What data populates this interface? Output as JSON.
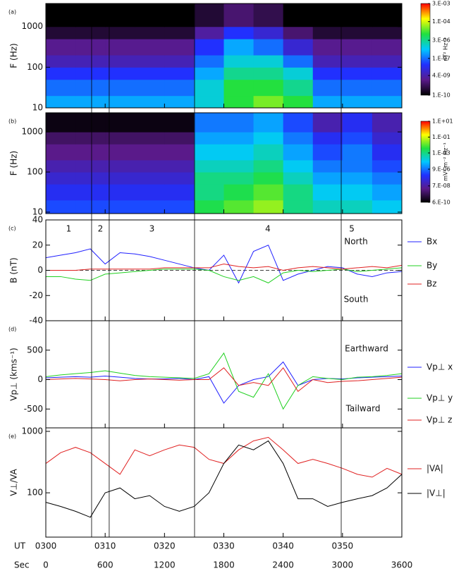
{
  "chart_data": [
    {
      "type": "heatmap",
      "panel_label": "(a)",
      "ylabel": "F (Hz)",
      "log_y": true,
      "ylim": [
        10,
        3700
      ],
      "yticks": [
        10,
        100,
        1000
      ],
      "time_bins": [
        0,
        300,
        600,
        900,
        1200,
        1500,
        1800,
        2100,
        2400,
        2700,
        3000,
        3300,
        3600
      ],
      "freq_bins": [
        10,
        20,
        50,
        100,
        200,
        500,
        1000,
        3700
      ],
      "colormap": [
        "#000000",
        "#5a1a8a",
        "#2030ff",
        "#00c8ff",
        "#20e040",
        "#ffff00",
        "#ff0000"
      ],
      "zlim": [
        1e-10,
        0.003
      ],
      "zlabel": "nT² Hz⁻¹",
      "zticks": [
        {
          "value": 0.003,
          "label": "3.E-03"
        },
        {
          "value": 0.0001,
          "label": "1.E-04"
        },
        {
          "value": 3e-06,
          "label": "3.E-06"
        },
        {
          "value": 1e-07,
          "label": "1.E-07"
        },
        {
          "value": 4e-09,
          "label": "4.E-09"
        },
        {
          "value": 1e-10,
          "label": "1.E-10"
        }
      ],
      "z": [
        [
          3e-07,
          3e-07,
          3e-07,
          3e-07,
          3e-07,
          1e-06,
          1e-05,
          3e-05,
          1e-05,
          3e-07,
          3e-07,
          3e-07
        ],
        [
          1e-07,
          1e-07,
          1e-07,
          1e-07,
          1e-07,
          1e-06,
          1e-05,
          1e-05,
          3e-06,
          1e-07,
          1e-07,
          1e-07
        ],
        [
          3e-08,
          3e-08,
          3e-08,
          3e-08,
          3e-08,
          3e-07,
          3e-06,
          3e-06,
          1e-06,
          3e-08,
          3e-08,
          3e-08
        ],
        [
          5e-09,
          5e-09,
          5e-09,
          5e-09,
          5e-09,
          1e-07,
          1e-06,
          1e-06,
          1e-07,
          5e-09,
          5e-09,
          5e-09
        ],
        [
          2e-09,
          2e-09,
          2e-09,
          2e-09,
          2e-09,
          3e-08,
          3e-07,
          1e-07,
          1e-08,
          2e-09,
          2e-09,
          2e-09
        ],
        [
          3e-10,
          3e-10,
          3e-10,
          3e-10,
          3e-10,
          3e-09,
          3e-08,
          1e-08,
          1e-09,
          3e-10,
          3e-10,
          3e-10
        ],
        [
          1e-10,
          1e-10,
          1e-10,
          1e-10,
          1e-10,
          3e-10,
          1e-09,
          5e-10,
          1e-10,
          1e-10,
          1e-10,
          1e-10
        ]
      ]
    },
    {
      "type": "heatmap",
      "panel_label": "(b)",
      "ylabel": "F (Hz)",
      "log_y": true,
      "ylim": [
        9.2,
        3000
      ],
      "yticks": [
        10,
        100,
        1000
      ],
      "time_bins": [
        0,
        300,
        600,
        900,
        1200,
        1500,
        1800,
        2100,
        2400,
        2700,
        3000,
        3300,
        3600
      ],
      "freq_bins": [
        9.2,
        20,
        50,
        100,
        200,
        500,
        1000,
        3000
      ],
      "colormap": [
        "#000000",
        "#5a1a8a",
        "#2030ff",
        "#00c8ff",
        "#20e040",
        "#ffff00",
        "#ff0000"
      ],
      "zlim": [
        6e-10,
        10
      ],
      "zlabel": "mV² m⁻² Hz⁻¹",
      "zticks": [
        {
          "value": 10,
          "label": "1.E+01"
        },
        {
          "value": 0.1,
          "label": "1.E-01"
        },
        {
          "value": 0.001,
          "label": "1.E-03"
        },
        {
          "value": 9e-06,
          "label": "9.E-06"
        },
        {
          "value": 7e-08,
          "label": "7.E-08"
        },
        {
          "value": 6e-10,
          "label": "6.E-10"
        }
      ],
      "z": [
        [
          3e-06,
          3e-06,
          3e-06,
          3e-06,
          3e-06,
          0.003,
          0.01,
          0.03,
          0.001,
          0.0003,
          0.0003,
          0.0001
        ],
        [
          1e-06,
          1e-06,
          1e-06,
          1e-06,
          1e-06,
          0.001,
          0.003,
          0.01,
          0.001,
          0.0001,
          0.0001,
          3e-05
        ],
        [
          3e-07,
          3e-07,
          3e-07,
          3e-07,
          3e-07,
          0.001,
          0.001,
          0.003,
          0.0003,
          3e-05,
          3e-05,
          1e-05
        ],
        [
          1e-07,
          1e-07,
          1e-07,
          1e-07,
          1e-07,
          0.0003,
          0.0003,
          0.001,
          0.0001,
          1e-05,
          1e-05,
          3e-06
        ],
        [
          3e-08,
          3e-08,
          3e-08,
          3e-08,
          3e-08,
          0.0001,
          0.0001,
          0.0003,
          3e-05,
          3e-06,
          1e-05,
          1e-06
        ],
        [
          1e-08,
          1e-08,
          1e-08,
          1e-08,
          1e-08,
          3e-05,
          3e-05,
          0.0001,
          1e-05,
          1e-06,
          3e-06,
          3e-07
        ],
        [
          1e-09,
          1e-09,
          1e-09,
          1e-09,
          1e-09,
          1e-05,
          1e-05,
          3e-05,
          3e-06,
          1e-07,
          1e-06,
          1e-07
        ]
      ]
    },
    {
      "type": "line",
      "panel_label": "(c)",
      "ylabel": "B (nT)",
      "ylim": [
        -40,
        40
      ],
      "yticks": [
        -40,
        -20,
        0,
        20,
        40
      ],
      "zero_line": true,
      "boundaries": [
        463,
        641,
        1504,
        2987
      ],
      "region_labels": [
        "1",
        "2",
        "3",
        "4",
        "5"
      ],
      "annotations": [
        "North",
        "South"
      ],
      "annotation_color": "#2020ff",
      "x": [
        0,
        150,
        300,
        450,
        600,
        750,
        900,
        1050,
        1200,
        1350,
        1500,
        1650,
        1800,
        1950,
        2100,
        2250,
        2400,
        2550,
        2700,
        2850,
        3000,
        3150,
        3300,
        3450,
        3600
      ],
      "series": [
        {
          "name": "Bx",
          "color": "#2020ff",
          "values": [
            10,
            12,
            14,
            17,
            5,
            14,
            13,
            11,
            8,
            5,
            2,
            0,
            12,
            -10,
            15,
            20,
            -8,
            -3,
            0,
            3,
            2,
            -3,
            -5,
            -2,
            -1
          ]
        },
        {
          "name": "By",
          "color": "#20d020",
          "values": [
            -5,
            -5,
            -7,
            -8,
            -3,
            -2,
            -1,
            0,
            1,
            1,
            1,
            0,
            -5,
            -8,
            -5,
            -10,
            -2,
            0,
            -1,
            0,
            1,
            -1,
            0,
            1,
            2
          ]
        },
        {
          "name": "Bz",
          "color": "#e02020",
          "values": [
            0,
            0,
            0,
            1,
            1,
            1,
            1,
            1,
            2,
            2,
            2,
            2,
            5,
            3,
            2,
            3,
            0,
            2,
            3,
            2,
            1,
            2,
            3,
            2,
            4
          ]
        }
      ]
    },
    {
      "type": "line",
      "panel_label": "(d)",
      "ylabel": "Vp⊥ (kms⁻¹)",
      "ylim": [
        -820,
        1000
      ],
      "yticks": [
        -500,
        0,
        500
      ],
      "annotations": [
        "Earthward",
        "Tailward"
      ],
      "annotation_color": "#2020ff",
      "x": [
        0,
        150,
        300,
        450,
        600,
        750,
        900,
        1050,
        1200,
        1350,
        1500,
        1650,
        1800,
        1950,
        2100,
        2250,
        2400,
        2550,
        2700,
        2850,
        3000,
        3150,
        3300,
        3450,
        3600
      ],
      "series": [
        {
          "name": "Vp⊥ x",
          "color": "#2020ff",
          "values": [
            30,
            40,
            50,
            40,
            60,
            40,
            20,
            10,
            10,
            20,
            0,
            50,
            -400,
            -100,
            0,
            50,
            300,
            -100,
            0,
            20,
            10,
            30,
            40,
            50,
            60
          ]
        },
        {
          "name": "Vp⊥ y",
          "color": "#20d020",
          "values": [
            50,
            80,
            100,
            120,
            150,
            110,
            70,
            50,
            40,
            30,
            20,
            100,
            450,
            -200,
            -300,
            100,
            -500,
            -100,
            50,
            20,
            0,
            40,
            50,
            70,
            100
          ]
        },
        {
          "name": "Vp⊥ z",
          "color": "#e02020",
          "values": [
            0,
            10,
            20,
            10,
            0,
            -20,
            0,
            10,
            0,
            -10,
            0,
            0,
            200,
            -100,
            -50,
            -100,
            200,
            -200,
            0,
            -50,
            -30,
            -20,
            0,
            20,
            40
          ]
        }
      ]
    },
    {
      "type": "line",
      "panel_label": "(e)",
      "ylabel": "V⊥/VA",
      "log_y": true,
      "ylim": [
        19,
        1140
      ],
      "yticks": [
        100,
        1000
      ],
      "xlabel": "UT",
      "x2label": "Sec",
      "xticks": [
        {
          "value": 0,
          "label": "0300"
        },
        {
          "value": 600,
          "label": "0310"
        },
        {
          "value": 1200,
          "label": "0320"
        },
        {
          "value": 1800,
          "label": "0330"
        },
        {
          "value": 2400,
          "label": "0340"
        },
        {
          "value": 3000,
          "label": "0350"
        }
      ],
      "xticks2": [
        0,
        600,
        1200,
        1800,
        2400,
        3000,
        3600
      ],
      "xlim": [
        0,
        3600
      ],
      "x": [
        0,
        150,
        300,
        450,
        600,
        750,
        900,
        1050,
        1200,
        1350,
        1500,
        1650,
        1800,
        1950,
        2100,
        2250,
        2400,
        2550,
        2700,
        2850,
        3000,
        3150,
        3300,
        3450,
        3600
      ],
      "series": [
        {
          "name": "|VA|",
          "color": "#e02020",
          "values": [
            300,
            450,
            550,
            450,
            300,
            200,
            500,
            400,
            500,
            600,
            550,
            350,
            300,
            500,
            700,
            800,
            500,
            300,
            350,
            300,
            250,
            200,
            180,
            250,
            200
          ]
        },
        {
          "name": "|V⊥|",
          "color": "#000000",
          "values": [
            70,
            60,
            50,
            40,
            100,
            120,
            80,
            90,
            60,
            50,
            60,
            100,
            300,
            600,
            500,
            700,
            300,
            80,
            80,
            60,
            70,
            80,
            90,
            120,
            200
          ]
        }
      ]
    }
  ]
}
